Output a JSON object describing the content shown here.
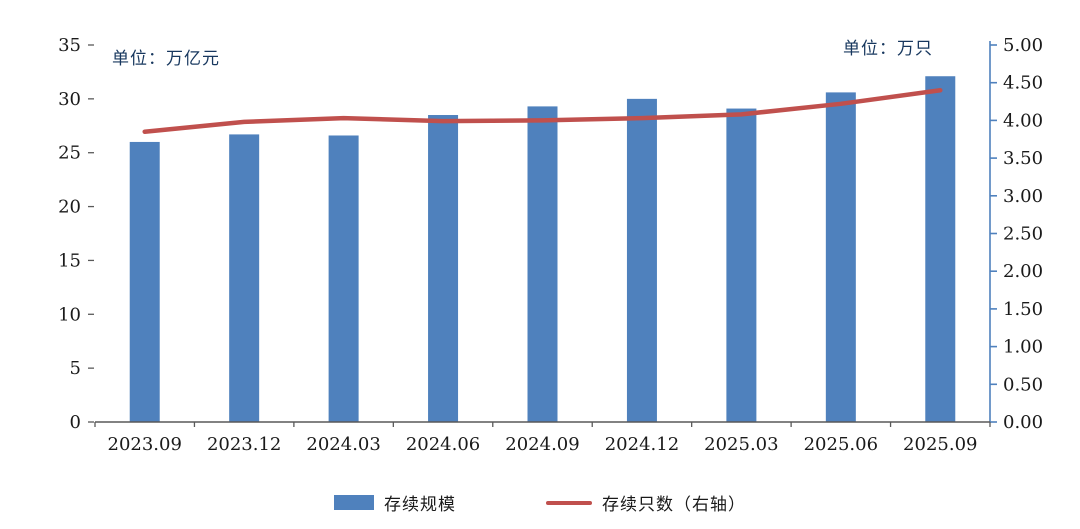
{
  "chart_data": {
    "type": "bar",
    "combo": "bar+line",
    "title": "",
    "categories": [
      "2023.09",
      "2023.12",
      "2024.03",
      "2024.06",
      "2024.09",
      "2024.12",
      "2025.03",
      "2025.06",
      "2025.09"
    ],
    "series": [
      {
        "name": "存续规模",
        "type": "bar",
        "axis": "left",
        "color": "#4f81bd",
        "values": [
          26.0,
          26.7,
          26.6,
          28.5,
          29.3,
          30.0,
          29.1,
          30.6,
          32.1
        ]
      },
      {
        "name": "存续只数（右轴）",
        "type": "line",
        "axis": "right",
        "color": "#c0504d",
        "values": [
          3.85,
          3.98,
          4.03,
          3.99,
          4.0,
          4.03,
          4.08,
          4.22,
          4.4
        ]
      }
    ],
    "left_axis": {
      "unit_label": "单位：万亿元",
      "min": 0,
      "max": 35,
      "step": 5,
      "decimals": 0
    },
    "right_axis": {
      "unit_label": "单位：万只",
      "min": 0,
      "max": 5,
      "step": 0.5,
      "decimals": 2,
      "line_color": "#4f81bd"
    },
    "legend": [
      "存续规模",
      "存续只数（右轴）"
    ],
    "legend_position": "bottom",
    "grid": false
  },
  "colors": {
    "axis_text": "#1a1a1a",
    "unit_text": "#17375e",
    "bottom_axis": "#595959"
  }
}
